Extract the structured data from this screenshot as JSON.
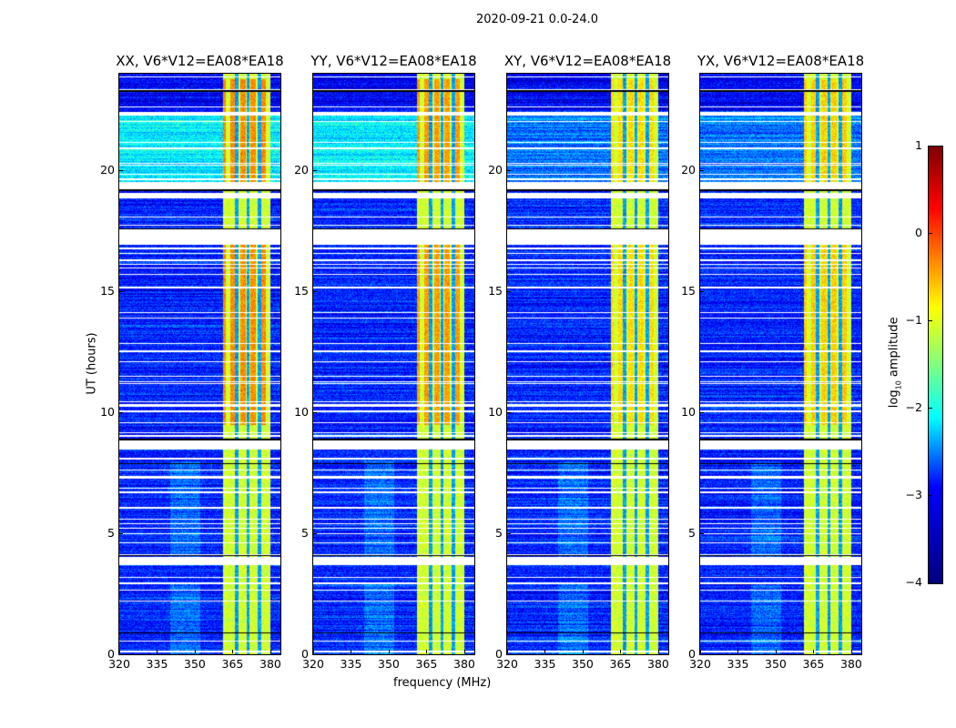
{
  "chart_data": {
    "type": "heatmap",
    "title": "2020-09-21 0.0-24.0",
    "xlabel": "frequency (MHz)",
    "ylabel": "UT (hours)",
    "xlim": [
      320,
      384
    ],
    "ylim": [
      0,
      24
    ],
    "xticks": [
      "320",
      "335",
      "350",
      "365",
      "380"
    ],
    "xtick_values": [
      320,
      335,
      350,
      365,
      380
    ],
    "yticks": [
      "0",
      "5",
      "10",
      "15",
      "20"
    ],
    "ytick_values": [
      0,
      5,
      10,
      15,
      20
    ],
    "panels": [
      {
        "title": "XX, V6*V12=EA08*EA18",
        "rfi_strength": 1.0
      },
      {
        "title": "YY, V6*V12=EA08*EA18",
        "rfi_strength": 0.9
      },
      {
        "title": "XY, V6*V12=EA08*EA18",
        "rfi_strength": 0.5
      },
      {
        "title": "YX, V6*V12=EA08*EA18",
        "rfi_strength": 0.6
      }
    ],
    "rfi_band_mhz": [
      361,
      380
    ],
    "rfi_gap_channels_mhz": [
      366.5,
      371,
      375.5
    ],
    "flagged_hours": [
      [
        22.3,
        22.45
      ],
      [
        19.3,
        19.55
      ],
      [
        18.95,
        19.05
      ],
      [
        17.0,
        17.55
      ],
      [
        8.5,
        8.8
      ],
      [
        3.7,
        4.05
      ],
      [
        12.5,
        12.6
      ],
      [
        2.9,
        3.0
      ]
    ],
    "dark_lines_hours": [
      0.9,
      4.1,
      7.9,
      8.9,
      17.6,
      19.2,
      23.3
    ],
    "colorbar": {
      "label": "log10 amplitude",
      "label_main": "log",
      "label_sub": "10",
      "label_rest": " amplitude",
      "range": [
        -4,
        1
      ],
      "ticks": [
        "1",
        "0",
        "−1",
        "−2",
        "−3",
        "−4"
      ],
      "tick_values": [
        1,
        0,
        -1,
        -2,
        -3,
        -4
      ],
      "colormap": "jet"
    }
  }
}
